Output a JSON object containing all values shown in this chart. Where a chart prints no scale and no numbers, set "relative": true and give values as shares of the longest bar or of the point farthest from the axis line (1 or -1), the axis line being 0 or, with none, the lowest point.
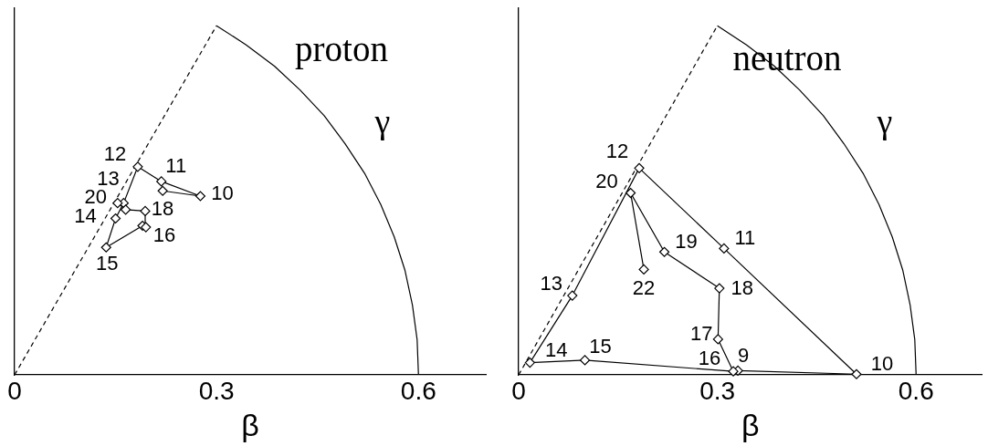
{
  "chart_data": [
    {
      "type": "line",
      "title": "proton",
      "xlabel": "β",
      "ylabel": "γ",
      "xlim": [
        0,
        0.7
      ],
      "xticks": [
        0,
        0.3,
        0.6
      ],
      "relative": true,
      "tick_labels": "x",
      "series": [
        {
          "color": "#000000",
          "marker": "diamond",
          "x": [
            0.22,
            0.276,
            0.218,
            0.183,
            0.162,
            0.15,
            0.136,
            0.19,
            0.195,
            0.194,
            0.165,
            0.153
          ],
          "values": [
            0.527,
            0.512,
            0.554,
            0.596,
            0.492,
            0.448,
            0.365,
            0.427,
            0.423,
            0.469,
            0.473,
            0.492
          ]
        },
        {
          "color": "#000000",
          "marker": "none",
          "line_style": "dashed",
          "x": [
            0,
            0.3
          ],
          "values": [
            0,
            1
          ]
        },
        {
          "color": "#000000",
          "marker": "none",
          "x": [
            0.6,
            0.598,
            0.591,
            0.58,
            0.564,
            0.544,
            0.52,
            0.491,
            0.46,
            0.424,
            0.386,
            0.344,
            0.3
          ],
          "values": [
            0,
            0.101,
            0.2,
            0.299,
            0.395,
            0.488,
            0.577,
            0.662,
            0.742,
            0.816,
            0.884,
            0.945,
            1
          ]
        }
      ],
      "annotations": [
        {
          "text": "12",
          "x": 0.183,
          "y": 0.596
        },
        {
          "text": "11",
          "x": 0.218,
          "y": 0.554
        },
        {
          "text": "10",
          "x": 0.276,
          "y": 0.512
        },
        {
          "text": "13",
          "x": 0.162,
          "y": 0.492
        },
        {
          "text": "20",
          "x": 0.153,
          "y": 0.492
        },
        {
          "text": "14",
          "x": 0.15,
          "y": 0.448
        },
        {
          "text": "18",
          "x": 0.194,
          "y": 0.469
        },
        {
          "text": "16",
          "x": 0.19,
          "y": 0.427
        },
        {
          "text": "15",
          "x": 0.136,
          "y": 0.365
        }
      ]
    },
    {
      "type": "line",
      "title": "neutron",
      "xlabel": "β",
      "ylabel": "γ",
      "xlim": [
        0,
        0.7
      ],
      "xticks": [
        0,
        0.3,
        0.6
      ],
      "relative": true,
      "tick_labels": "x",
      "series": [
        {
          "color": "#000000",
          "marker": "diamond",
          "x": [
            0.331,
            0.51,
            0.31,
            0.182,
            0.081,
            0.017,
            0.1,
            0.324,
            0.301,
            0.303,
            0.22,
            0.169,
            0.189
          ],
          "values": [
            0.012,
            0.002,
            0.362,
            0.592,
            0.227,
            0.035,
            0.042,
            0.01,
            0.102,
            0.248,
            0.352,
            0.521,
            0.302
          ]
        },
        {
          "color": "#000000",
          "marker": "none",
          "line_style": "dashed",
          "x": [
            0,
            0.3
          ],
          "values": [
            0,
            1
          ]
        },
        {
          "color": "#000000",
          "marker": "none",
          "x": [
            0.6,
            0.598,
            0.591,
            0.58,
            0.564,
            0.544,
            0.52,
            0.491,
            0.46,
            0.424,
            0.386,
            0.344,
            0.3
          ],
          "values": [
            0,
            0.101,
            0.2,
            0.299,
            0.395,
            0.488,
            0.577,
            0.662,
            0.742,
            0.816,
            0.884,
            0.945,
            1
          ]
        }
      ],
      "annotations": [
        {
          "text": "12",
          "x": 0.182,
          "y": 0.592
        },
        {
          "text": "20",
          "x": 0.169,
          "y": 0.521
        },
        {
          "text": "13",
          "x": 0.081,
          "y": 0.227
        },
        {
          "text": "14",
          "x": 0.017,
          "y": 0.035
        },
        {
          "text": "15",
          "x": 0.1,
          "y": 0.042
        },
        {
          "text": "16",
          "x": 0.324,
          "y": 0.01
        },
        {
          "text": "9",
          "x": 0.331,
          "y": 0.012
        },
        {
          "text": "10",
          "x": 0.51,
          "y": 0.002
        },
        {
          "text": "17",
          "x": 0.301,
          "y": 0.102
        },
        {
          "text": "18",
          "x": 0.303,
          "y": 0.248
        },
        {
          "text": "19",
          "x": 0.22,
          "y": 0.352
        },
        {
          "text": "11",
          "x": 0.31,
          "y": 0.362
        },
        {
          "text": "22",
          "x": 0.189,
          "y": 0.302
        }
      ]
    }
  ]
}
